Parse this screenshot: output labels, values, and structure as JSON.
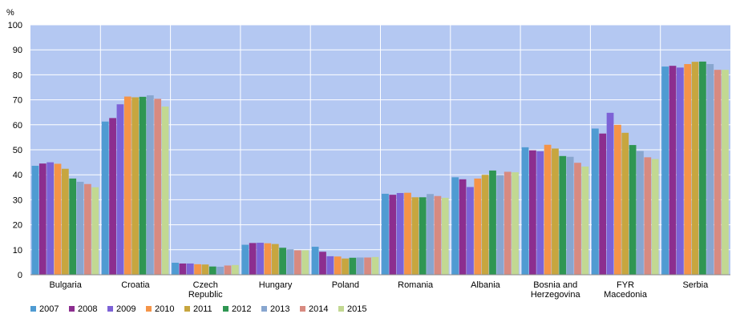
{
  "chart_data": {
    "type": "bar",
    "ylabel": "%",
    "ylim": [
      0,
      100
    ],
    "yticks": [
      0,
      10,
      20,
      30,
      40,
      50,
      60,
      70,
      80,
      90,
      100
    ],
    "grid": true,
    "legend_position": "bottom-left",
    "background_color": "#b4c8f2",
    "gridline_color": "#ffffff",
    "categories": [
      [
        "Bulgaria"
      ],
      [
        "Croatia"
      ],
      [
        "Czech",
        "Republic"
      ],
      [
        "Hungary"
      ],
      [
        "Poland"
      ],
      [
        "Romania"
      ],
      [
        "Albania"
      ],
      [
        "Bosnia and",
        "Herzegovina"
      ],
      [
        "FYR",
        "Macedonia"
      ],
      [
        "Serbia"
      ]
    ],
    "series": [
      {
        "name": "2007",
        "color": "#4f9bd2",
        "values": [
          43.6,
          61.3,
          4.8,
          12.0,
          11.2,
          32.4,
          39.0,
          51.0,
          58.5,
          83.3
        ]
      },
      {
        "name": "2008",
        "color": "#8c2e8f",
        "values": [
          44.5,
          62.7,
          4.5,
          12.7,
          9.2,
          32.0,
          38.2,
          49.8,
          56.5,
          83.6
        ]
      },
      {
        "name": "2009",
        "color": "#7d62d6",
        "values": [
          45.0,
          68.2,
          4.5,
          12.8,
          7.4,
          32.7,
          35.1,
          49.4,
          64.8,
          82.9
        ]
      },
      {
        "name": "2010",
        "color": "#f59447",
        "values": [
          44.4,
          71.3,
          4.2,
          12.6,
          7.3,
          32.8,
          38.5,
          52.0,
          60.0,
          84.3
        ]
      },
      {
        "name": "2011",
        "color": "#c7a63f",
        "values": [
          42.4,
          71.0,
          4.1,
          12.3,
          6.5,
          31.0,
          40.0,
          50.5,
          56.8,
          85.2
        ]
      },
      {
        "name": "2012",
        "color": "#2f9652",
        "values": [
          38.5,
          71.2,
          3.3,
          10.8,
          6.8,
          31.0,
          41.7,
          47.5,
          51.9,
          85.3
        ]
      },
      {
        "name": "2013",
        "color": "#88a6cf",
        "values": [
          37.2,
          71.8,
          3.2,
          10.2,
          6.9,
          32.3,
          39.9,
          47.2,
          49.5,
          84.3
        ]
      },
      {
        "name": "2014",
        "color": "#d88a80",
        "values": [
          36.3,
          70.4,
          3.7,
          9.8,
          6.9,
          31.5,
          41.2,
          44.8,
          47.0,
          82.0
        ]
      },
      {
        "name": "2015",
        "color": "#c2d892",
        "values": [
          35.0,
          67.3,
          3.9,
          9.8,
          7.1,
          30.8,
          41.0,
          43.3,
          46.3,
          82.0
        ]
      }
    ]
  }
}
